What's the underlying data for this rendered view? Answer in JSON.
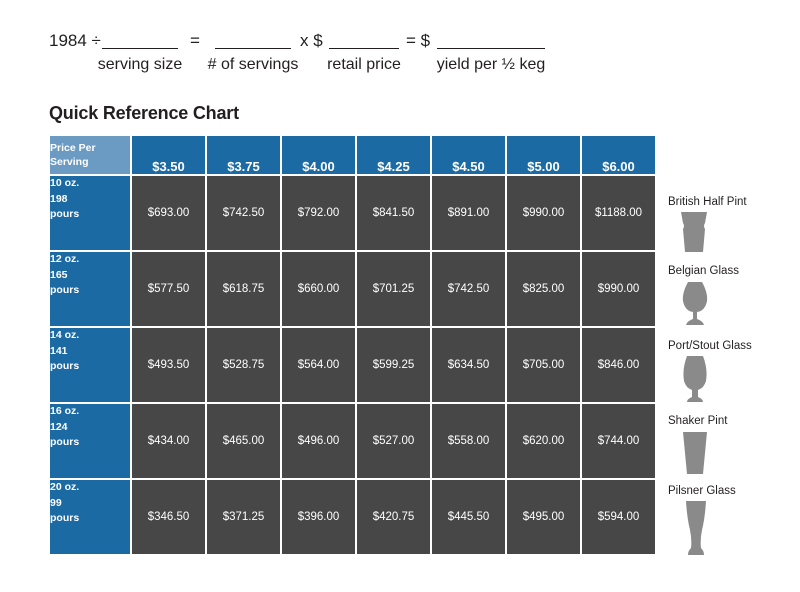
{
  "formula": {
    "lead": "1984 ÷",
    "equals": "=",
    "times": "x $",
    "equals_dollar": "= $",
    "labels": {
      "serving_size": "serving size",
      "servings": "# of servings",
      "retail_price": "retail price",
      "yield": "yield per ½ keg"
    }
  },
  "chart_title": "Quick Reference Chart",
  "table": {
    "corner_line1": "Price Per",
    "corner_line2": "Serving",
    "prices": [
      "$3.50",
      "$3.75",
      "$4.00",
      "$4.25",
      "$4.50",
      "$5.00",
      "$6.00"
    ],
    "rows": [
      {
        "size": "10 oz.",
        "pours": "198",
        "unit": "pours",
        "values": [
          "$693.00",
          "$742.50",
          "$792.00",
          "$841.50",
          "$891.00",
          "$990.00",
          "$1188.00"
        ]
      },
      {
        "size": "12 oz.",
        "pours": "165",
        "unit": "pours",
        "values": [
          "$577.50",
          "$618.75",
          "$660.00",
          "$701.25",
          "$742.50",
          "$825.00",
          "$990.00"
        ]
      },
      {
        "size": "14 oz.",
        "pours": "141",
        "unit": "pours",
        "values": [
          "$493.50",
          "$528.75",
          "$564.00",
          "$599.25",
          "$634.50",
          "$705.00",
          "$846.00"
        ]
      },
      {
        "size": "16 oz.",
        "pours": "124",
        "unit": "pours",
        "values": [
          "$434.00",
          "$465.00",
          "$496.00",
          "$527.00",
          "$558.00",
          "$620.00",
          "$744.00"
        ]
      },
      {
        "size": "20 oz.",
        "pours": "99",
        "unit": "pours",
        "values": [
          "$346.50",
          "$371.25",
          "$396.00",
          "$420.75",
          "$445.50",
          "$495.00",
          "$594.00"
        ]
      }
    ]
  },
  "glasses": [
    {
      "label": "British Half Pint",
      "icon": "half-pint-glass-icon"
    },
    {
      "label": "Belgian Glass",
      "icon": "belgian-glass-icon"
    },
    {
      "label": "Port/Stout Glass",
      "icon": "stout-glass-icon"
    },
    {
      "label": "Shaker Pint",
      "icon": "shaker-pint-icon"
    },
    {
      "label": "Pilsner Glass",
      "icon": "pilsner-glass-icon"
    }
  ],
  "colors": {
    "header_blue": "#1c6aa3",
    "corner_blue": "#6b9bc3",
    "cell_gray": "#474747",
    "glass_gray": "#8a8a8a"
  }
}
